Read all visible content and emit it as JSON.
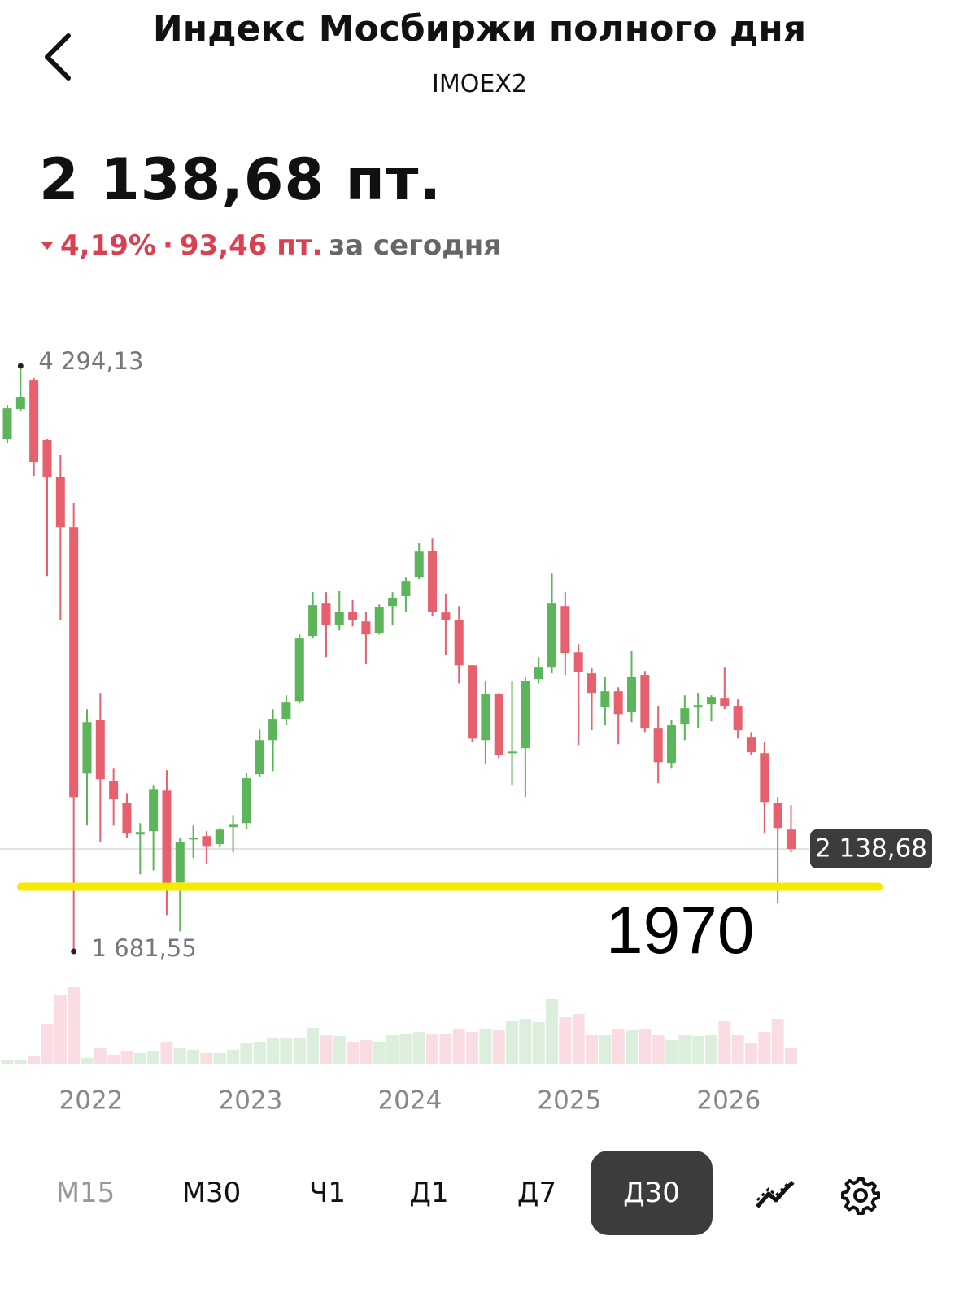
{
  "header": {
    "title": "Индекс Мосбиржи полного дня",
    "subtitle": "IMOEX2"
  },
  "quote": {
    "price": "2 138,68 пт.",
    "change_percent": "4,19%",
    "change_points": "93,46 пт.",
    "period": "за сегодня"
  },
  "chart_data": {
    "type": "candlestick",
    "categories": [
      null,
      null,
      null,
      null,
      null,
      null,
      "2022",
      null,
      null,
      null,
      null,
      null,
      null,
      null,
      null,
      null,
      null,
      null,
      "2023",
      null,
      null,
      null,
      null,
      null,
      null,
      null,
      null,
      null,
      null,
      null,
      "2024",
      null,
      null,
      null,
      null,
      null,
      null,
      null,
      null,
      null,
      null,
      null,
      "2025",
      null,
      null,
      null,
      null,
      null,
      null,
      null,
      null,
      null,
      null,
      null,
      "2026",
      null,
      null,
      null,
      null,
      null
    ],
    "open": [
      3967,
      4102,
      4232,
      3964,
      3800,
      3575,
      2475,
      2715,
      2443,
      2345,
      2203,
      2218,
      2399,
      1989,
      2181,
      2196,
      2160,
      2236,
      2254,
      2472,
      2624,
      2719,
      2798,
      3089,
      3234,
      3140,
      3198,
      3154,
      3103,
      3223,
      3267,
      3350,
      3470,
      3194,
      3162,
      2958,
      2624,
      2831,
      2566,
      2588,
      2897,
      2951,
      3223,
      3016,
      2922,
      2770,
      2842,
      2748,
      2915,
      2679,
      2523,
      2697,
      2773,
      2784,
      2813,
      2777,
      2639,
      2566,
      2345,
      2225
    ],
    "high": [
      4120,
      4294.13,
      4240,
      3967,
      3895,
      3684,
      2762,
      2835,
      2497,
      2388,
      2254,
      2424,
      2490,
      2189,
      2243,
      2218,
      2232,
      2290,
      2479,
      2671,
      2762,
      2824,
      3096,
      3285,
      3285,
      3289,
      3249,
      3198,
      3230,
      3285,
      3350,
      3503,
      3524,
      3278,
      3223,
      2958,
      2886,
      2835,
      2886,
      2907,
      2994,
      3368,
      3285,
      3052,
      2944,
      2907,
      2860,
      3023,
      2933,
      2777,
      2715,
      2824,
      2835,
      2824,
      2951,
      2806,
      2660,
      2617,
      2370,
      2334
    ],
    "low": [
      3949,
      4094,
      3804,
      3357,
      3161,
      1681.55,
      2243,
      2170,
      2243,
      2189,
      2025,
      2043,
      1844,
      1771,
      2098,
      2072,
      2145,
      2123,
      2225,
      2461,
      2486,
      2690,
      2788,
      3078,
      2994,
      3114,
      3132,
      2962,
      3096,
      3140,
      3198,
      3343,
      3176,
      3005,
      2878,
      2617,
      2515,
      2544,
      2425,
      2370,
      2878,
      2922,
      2915,
      2602,
      2668,
      2690,
      2606,
      2704,
      2660,
      2432,
      2497,
      2624,
      2679,
      2708,
      2762,
      2631,
      2559,
      2207,
      1898,
      2123
    ],
    "close": [
      4105,
      4156,
      3866,
      3800,
      3575,
      2370,
      2704,
      2450,
      2363,
      2207,
      2214,
      2406,
      1982,
      2170,
      2189,
      2152,
      2225,
      2250,
      2454,
      2624,
      2719,
      2795,
      3078,
      3227,
      3140,
      3198,
      3162,
      3096,
      3220,
      3259,
      3332,
      3466,
      3198,
      3162,
      2958,
      2631,
      2831,
      2559,
      2573,
      2889,
      2951,
      3234,
      3013,
      2929,
      2835,
      2842,
      2740,
      2907,
      2679,
      2526,
      2690,
      2766,
      2780,
      2817,
      2777,
      2668,
      2570,
      2348,
      2232,
      2138.68
    ],
    "volume": [
      6,
      6,
      10,
      50,
      85,
      95,
      8,
      20,
      12,
      16,
      14,
      16,
      28,
      20,
      18,
      14,
      14,
      18,
      26,
      28,
      32,
      32,
      32,
      45,
      36,
      35,
      28,
      30,
      28,
      36,
      38,
      40,
      38,
      38,
      44,
      40,
      44,
      42,
      54,
      56,
      52,
      80,
      58,
      62,
      36,
      36,
      44,
      42,
      44,
      36,
      30,
      36,
      35,
      36,
      54,
      36,
      26,
      40,
      56,
      20
    ],
    "volume_lim": [
      0,
      100
    ],
    "up_color": "#5cb55a",
    "down_color": "#e6606e",
    "up_volume_color": "#dcefdc",
    "down_volume_color": "#f9dde2",
    "max_marker": {
      "value": 4294.13,
      "label": "4 294,13"
    },
    "min_marker": {
      "value": 1681.55,
      "label": "1 681,55"
    },
    "last_price": {
      "value": 2138.68,
      "label": "2 138,68"
    },
    "annotation_level": 1970,
    "annotation_color": "#f5ea00"
  },
  "timeframes": [
    "М15",
    "М30",
    "Ч1",
    "Д1",
    "Д7",
    "Д30"
  ]
}
